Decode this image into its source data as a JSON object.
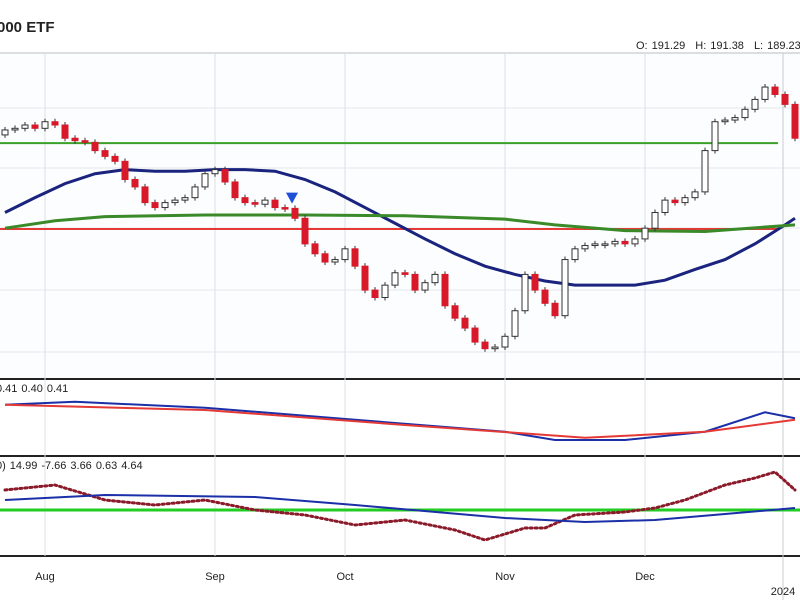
{
  "header": {
    "title": "000 ETF",
    "ohlc_labels": [
      "O:",
      "H:",
      "L:"
    ],
    "ohlc_values": [
      191.29,
      191.38,
      189.23
    ]
  },
  "chart_data": [
    {
      "type": "candlestick",
      "categories": [
        null,
        null,
        null,
        null,
        "Aug",
        null,
        null,
        null,
        null,
        null,
        null,
        null,
        null,
        null,
        null,
        null,
        null,
        null,
        null,
        null,
        null,
        "Sep",
        null,
        null,
        null,
        null,
        null,
        null,
        null,
        null,
        null,
        null,
        null,
        null,
        "Oct",
        null,
        null,
        null,
        null,
        null,
        null,
        null,
        null,
        null,
        null,
        null,
        null,
        null,
        null,
        null,
        "Nov",
        null,
        null,
        null,
        null,
        null,
        null,
        null,
        null,
        null,
        null,
        null,
        null,
        null,
        "Dec",
        null,
        null,
        null,
        null,
        null,
        null,
        null,
        null,
        null,
        null,
        null,
        null,
        null,
        null,
        null
      ],
      "year_label": "2024",
      "open": [
        190.2,
        190.8,
        191.0,
        191.4,
        191.0,
        191.8,
        191.4,
        189.8,
        189.5,
        189.3,
        188.3,
        187.6,
        187.0,
        184.8,
        183.9,
        182.0,
        181.4,
        182.0,
        182.3,
        182.6,
        183.9,
        185.5,
        186.0,
        184.5,
        182.6,
        182.0,
        181.8,
        182.3,
        181.4,
        181.3,
        180.1,
        177.0,
        175.8,
        174.8,
        175.1,
        176.4,
        174.3,
        171.4,
        170.5,
        172.0,
        173.5,
        173.3,
        171.4,
        172.3,
        173.3,
        169.5,
        168.0,
        166.8,
        165.1,
        164.3,
        164.5,
        165.8,
        168.9,
        173.3,
        171.4,
        169.8,
        168.3,
        175.1,
        176.4,
        176.8,
        177.0,
        177.0,
        177.3,
        177.0,
        177.6,
        178.9,
        180.8,
        182.3,
        182.0,
        182.6,
        183.3,
        188.3,
        191.8,
        192.0,
        192.3,
        193.3,
        194.5,
        196.0,
        195.1,
        193.9
      ],
      "close": [
        190.8,
        191.0,
        191.4,
        191.0,
        191.8,
        191.4,
        189.8,
        189.5,
        189.3,
        188.3,
        187.6,
        187.0,
        184.8,
        183.9,
        182.0,
        181.4,
        182.0,
        182.3,
        182.6,
        183.9,
        185.5,
        186.0,
        184.5,
        182.6,
        182.0,
        181.8,
        182.3,
        181.4,
        181.3,
        180.1,
        177.0,
        175.8,
        174.8,
        175.1,
        176.4,
        174.3,
        171.4,
        170.5,
        172.0,
        173.5,
        173.3,
        171.4,
        172.3,
        173.3,
        169.5,
        168.0,
        166.8,
        165.1,
        164.3,
        164.5,
        165.8,
        168.9,
        173.3,
        171.4,
        169.8,
        168.3,
        175.1,
        176.4,
        176.8,
        177.0,
        177.0,
        177.3,
        177.0,
        177.6,
        178.9,
        180.8,
        182.3,
        182.0,
        182.6,
        183.3,
        188.3,
        191.8,
        192.0,
        192.3,
        193.3,
        194.5,
        196.0,
        195.1,
        193.9,
        189.8
      ],
      "up_color": "#ffffff",
      "down_color": "#d8192a",
      "ylim": [
        160.75,
        200.125
      ],
      "overlays": [
        {
          "color": "#1a237e",
          "x": [
            0,
            3,
            6,
            9,
            12,
            15,
            18,
            21,
            24,
            27,
            30,
            33,
            36,
            39,
            42,
            45,
            48,
            51,
            54,
            57,
            60,
            63,
            66,
            69,
            72,
            75,
            78,
            79
          ],
          "values": [
            180.8,
            182.6,
            184.3,
            185.5,
            186.0,
            185.8,
            185.8,
            186.0,
            186.0,
            185.8,
            184.8,
            183.3,
            181.4,
            179.5,
            177.6,
            175.8,
            174.3,
            173.3,
            172.5,
            172.0,
            172.0,
            172.0,
            172.6,
            173.9,
            175.1,
            177.0,
            179.3,
            180.1
          ]
        },
        {
          "color": "#3a8a2a",
          "x": [
            0,
            5,
            10,
            20,
            30,
            40,
            50,
            55,
            62,
            70,
            79
          ],
          "values": [
            178.9,
            179.8,
            180.3,
            180.5,
            180.5,
            180.4,
            180.0,
            179.3,
            178.6,
            178.5,
            179.3
          ]
        }
      ],
      "levels": [
        {
          "value": 178.8,
          "color": "#e53935"
        },
        {
          "value": 189.2,
          "color": "#3aa02a"
        }
      ],
      "marker": {
        "x": 28.7,
        "value": 182.6,
        "color": "#1e4fd8"
      }
    },
    {
      "type": "line",
      "ylim": [
        0.35,
        0.45
      ],
      "legend_values": [
        0.41,
        0.4,
        0.41
      ],
      "value_labels": [
        "0.41",
        "0.40",
        "0.41"
      ],
      "legend_colors": [
        "#d8192a",
        "#1a237e",
        "#1a237e"
      ],
      "series": [
        {
          "color": "#1a2fa8",
          "x": [
            0,
            7,
            20,
            35,
            50,
            55,
            62,
            70,
            76,
            79
          ],
          "values": [
            0.417,
            0.421,
            0.413,
            0.397,
            0.381,
            0.37,
            0.37,
            0.381,
            0.407,
            0.399
          ]
        },
        {
          "color": "#e53935",
          "x": [
            0,
            20,
            40,
            58,
            70,
            79
          ],
          "values": [
            0.417,
            0.41,
            0.39,
            0.373,
            0.381,
            0.397
          ]
        }
      ]
    },
    {
      "type": "line",
      "ylim": [
        -22.5,
        26.5
      ],
      "prefix": "0)",
      "legend_values": [
        14.99,
        -7.66,
        3.66,
        0.63,
        4.64
      ],
      "legend_colors": [
        "#1a237e",
        "#1a237e",
        "#1a237e",
        "#2e9a2e",
        "#8b1a2a"
      ],
      "level": {
        "value": 0,
        "color": "#22cc22"
      },
      "series": [
        {
          "color": "#8b1a2a",
          "dotted": true,
          "x": [
            0,
            5,
            10,
            15,
            20,
            25,
            30,
            35,
            40,
            45,
            48,
            52,
            54,
            57,
            62,
            65,
            68,
            72,
            75,
            77,
            79
          ],
          "values": [
            10,
            12.5,
            5,
            2.5,
            5,
            0,
            -2.5,
            -7.5,
            -5,
            -10,
            -15,
            -9,
            -9,
            -2.5,
            -1,
            1,
            5,
            12.5,
            16,
            19,
            10
          ]
        },
        {
          "color": "#1a2fa8",
          "dotted": false,
          "x": [
            0,
            10,
            25,
            35,
            50,
            58,
            65,
            72,
            79
          ],
          "values": [
            5,
            7.5,
            6.5,
            2.5,
            -4,
            -6,
            -5,
            -2,
            1
          ]
        }
      ]
    }
  ]
}
